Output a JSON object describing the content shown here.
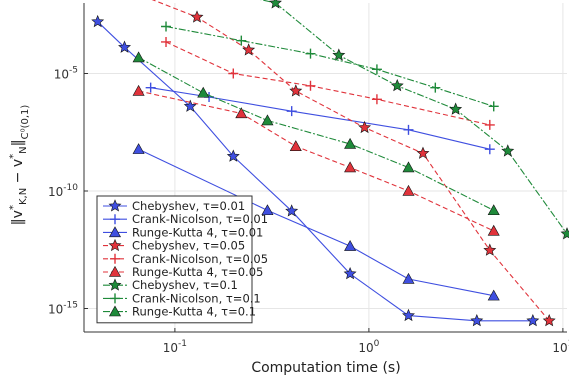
{
  "chart_data": {
    "type": "line",
    "title": "",
    "xlabel": "Computation time (s)",
    "ylabel": "‖v*_{K,N} − v*_N‖_{C⁰(0,1)}",
    "xscale": "log",
    "yscale": "log",
    "xlim": [
      0.034,
      10.5
    ],
    "ylim": [
      1e-16,
      0.01
    ],
    "grid": true,
    "legend_position": "bottom-left",
    "x_ticks": [
      {
        "value": 0.1,
        "base": "10",
        "exp": "-1"
      },
      {
        "value": 1,
        "base": "10",
        "exp": "0"
      },
      {
        "value": 10,
        "base": "10",
        "exp": "1"
      }
    ],
    "y_ticks": [
      {
        "value": 1e-05,
        "base": "10",
        "exp": "-5"
      },
      {
        "value": 1e-10,
        "base": "10",
        "exp": "-10"
      },
      {
        "value": 1e-15,
        "base": "10",
        "exp": "-15"
      }
    ],
    "series": [
      {
        "name": "Chebyshev, τ=0.01",
        "color": "#3f4fe0",
        "dash": "",
        "marker": "star",
        "x": [
          0.04,
          0.055,
          0.12,
          0.2,
          0.4,
          0.8,
          1.6,
          3.6,
          7.0
        ],
        "y": [
          0.0016,
          0.00013,
          4e-07,
          3e-09,
          1.4e-11,
          3e-14,
          5e-16,
          3e-16,
          3e-16
        ]
      },
      {
        "name": "Crank-Nicolson, τ=0.01",
        "color": "#3f4fe0",
        "dash": "",
        "marker": "plus",
        "x": [
          0.075,
          0.15,
          0.4,
          1.6,
          4.2
        ],
        "y": [
          2.5e-06,
          1e-06,
          2.5e-07,
          4e-08,
          6e-09
        ]
      },
      {
        "name": "Runge-Kutta 4, τ=0.01",
        "color": "#3f4fe0",
        "dash": "",
        "marker": "triangle",
        "x": [
          0.065,
          0.3,
          0.8,
          1.6,
          4.4
        ],
        "y": [
          6e-09,
          1.5e-11,
          4.5e-13,
          1.8e-14,
          3.5e-15
        ]
      },
      {
        "name": "Chebyshev, τ=0.05",
        "color": "#e0333b",
        "dash": "5,3",
        "marker": "star",
        "x": [
          0.063,
          0.13,
          0.24,
          0.42,
          0.95,
          1.9,
          4.2,
          8.5
        ],
        "y": [
          0.026,
          0.0025,
          0.0001,
          1.8e-06,
          5e-08,
          4e-09,
          3e-13,
          3e-16
        ]
      },
      {
        "name": "Crank-Nicolson, τ=0.05",
        "color": "#e0333b",
        "dash": "5,3",
        "marker": "plus",
        "x": [
          0.09,
          0.2,
          0.5,
          1.1,
          4.2
        ],
        "y": [
          0.00022,
          1e-05,
          3e-06,
          8e-07,
          6.5e-08
        ]
      },
      {
        "name": "Runge-Kutta 4, τ=0.05",
        "color": "#e0333b",
        "dash": "5,3",
        "marker": "triangle",
        "x": [
          0.065,
          0.22,
          0.42,
          0.8,
          1.6,
          4.4
        ],
        "y": [
          1.8e-06,
          2e-07,
          8e-09,
          1e-09,
          1e-10,
          2e-12
        ]
      },
      {
        "name": "Chebyshev, τ=0.1",
        "color": "#1f8a3a",
        "dash": "7,2,2,2",
        "marker": "star",
        "x": [
          0.072,
          0.2,
          0.33,
          0.7,
          1.4,
          2.8,
          5.2,
          10.5
        ],
        "y": [
          0.04,
          0.026,
          0.01,
          6e-05,
          3e-06,
          3e-07,
          5e-09,
          1.5e-12
        ]
      },
      {
        "name": "Crank-Nicolson, τ=0.1",
        "color": "#1f8a3a",
        "dash": "7,2,2,2",
        "marker": "plus",
        "x": [
          0.09,
          0.22,
          0.5,
          1.1,
          2.2,
          4.4
        ],
        "y": [
          0.001,
          0.00025,
          7e-05,
          1.5e-05,
          2.5e-06,
          4e-07
        ]
      },
      {
        "name": "Runge-Kutta 4, τ=0.1",
        "color": "#1f8a3a",
        "dash": "7,2,2,2",
        "marker": "triangle",
        "x": [
          0.065,
          0.14,
          0.3,
          0.8,
          1.6,
          4.4
        ],
        "y": [
          4.8e-05,
          1.5e-06,
          1e-07,
          1e-08,
          1e-09,
          1.5e-11
        ]
      }
    ]
  }
}
